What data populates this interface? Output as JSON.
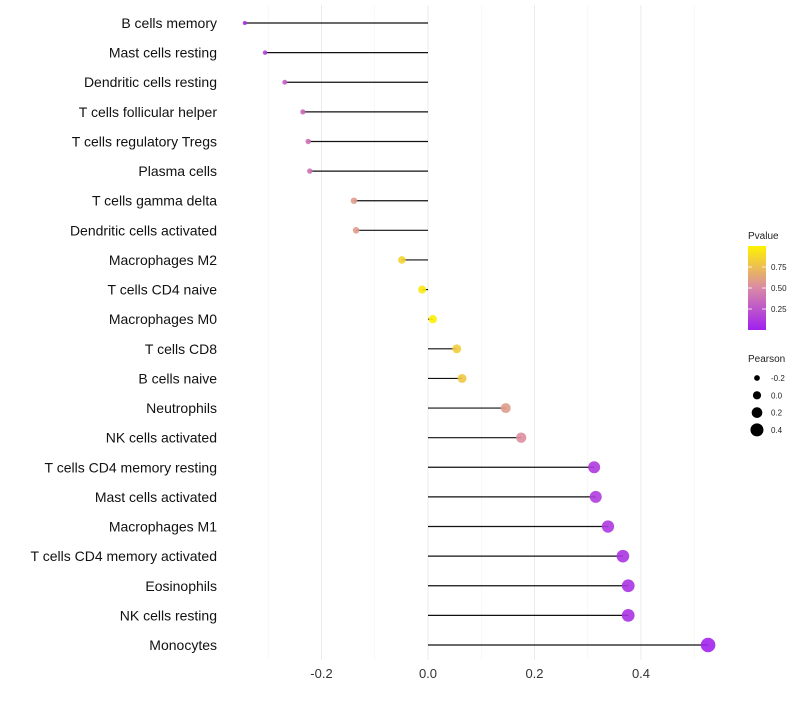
{
  "chart_data": {
    "type": "lollipop",
    "title": "",
    "xlabel": "",
    "ylabel": "",
    "xlim": [
      -0.37,
      0.56
    ],
    "x_ticks": [
      -0.2,
      0.0,
      0.2,
      0.4
    ],
    "x_tick_labels": [
      "-0.2",
      "0.0",
      "0.2",
      "0.4"
    ],
    "grid": true,
    "categories": [
      "B cells memory",
      "Mast cells resting",
      "Dendritic cells resting",
      "T cells follicular helper",
      "T cells regulatory  Tregs",
      "Plasma cells",
      "T cells gamma delta",
      "Dendritic cells activated",
      "Macrophages M2",
      "T cells CD4 naive",
      "Macrophages M0",
      "T cells CD8",
      "B cells naive",
      "Neutrophils",
      "NK cells activated",
      "T cells CD4 memory resting",
      "Mast cells activated",
      "Macrophages M1",
      "T cells CD4 memory activated",
      "Eosinophils",
      "NK cells resting",
      "Monocytes"
    ],
    "pearson": [
      -0.344,
      -0.306,
      -0.269,
      -0.235,
      -0.225,
      -0.222,
      -0.139,
      -0.135,
      -0.049,
      -0.011,
      0.009,
      0.054,
      0.064,
      0.146,
      0.175,
      0.312,
      0.315,
      0.338,
      0.366,
      0.376,
      0.376,
      0.526
    ],
    "pvalue": [
      0.05,
      0.15,
      0.3,
      0.35,
      0.38,
      0.4,
      0.58,
      0.58,
      0.85,
      0.95,
      0.99,
      0.82,
      0.8,
      0.58,
      0.52,
      0.12,
      0.13,
      0.12,
      0.1,
      0.09,
      0.09,
      0.02
    ],
    "legend": {
      "placement": "right",
      "color_title": "Pvalue",
      "color_ticks": [
        "0.75",
        "0.50",
        "0.25"
      ],
      "color_tick_values": [
        0.75,
        0.5,
        0.25
      ],
      "size_title": "Pearson",
      "size_labels": [
        "-0.2",
        "0.0",
        "0.2",
        "0.4"
      ],
      "size_values": [
        -0.2,
        0.0,
        0.2,
        0.4
      ]
    },
    "colors": {
      "low": "#a020f0",
      "mid": "#d98aa6",
      "high": "#fff200"
    }
  }
}
